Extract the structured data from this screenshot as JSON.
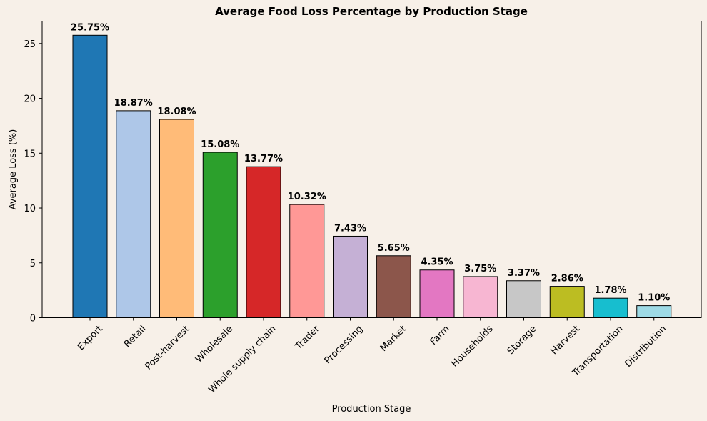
{
  "chart_data": {
    "type": "bar",
    "title": "Average Food Loss Percentage by Production Stage",
    "xlabel": "Production Stage",
    "ylabel": "Average Loss (%)",
    "ylim": [
      0,
      27.04
    ],
    "yticks": [
      0,
      5,
      10,
      15,
      20,
      25
    ],
    "grid": false,
    "categories": [
      "Export",
      "Retail",
      "Post-harvest",
      "Wholesale",
      "Whole supply chain",
      "Trader",
      "Processing",
      "Market",
      "Farm",
      "Households",
      "Storage",
      "Harvest",
      "Transportation",
      "Distribution"
    ],
    "values": [
      25.75,
      18.87,
      18.08,
      15.08,
      13.77,
      10.32,
      7.43,
      5.65,
      4.35,
      3.75,
      3.37,
      2.86,
      1.78,
      1.1
    ],
    "data_labels": [
      "25.75%",
      "18.87%",
      "18.08%",
      "15.08%",
      "13.77%",
      "10.32%",
      "7.43%",
      "5.65%",
      "4.35%",
      "3.75%",
      "3.37%",
      "2.86%",
      "1.78%",
      "1.10%"
    ],
    "colors": [
      "#1f77b4",
      "#aec7e8",
      "#ffbb78",
      "#2ca02c",
      "#d62728",
      "#ff9896",
      "#c5b0d5",
      "#8c564b",
      "#e377c2",
      "#f7b6d2",
      "#c7c7c7",
      "#bcbd22",
      "#17becf",
      "#9edae5"
    ],
    "background": "#f7f0e8"
  }
}
